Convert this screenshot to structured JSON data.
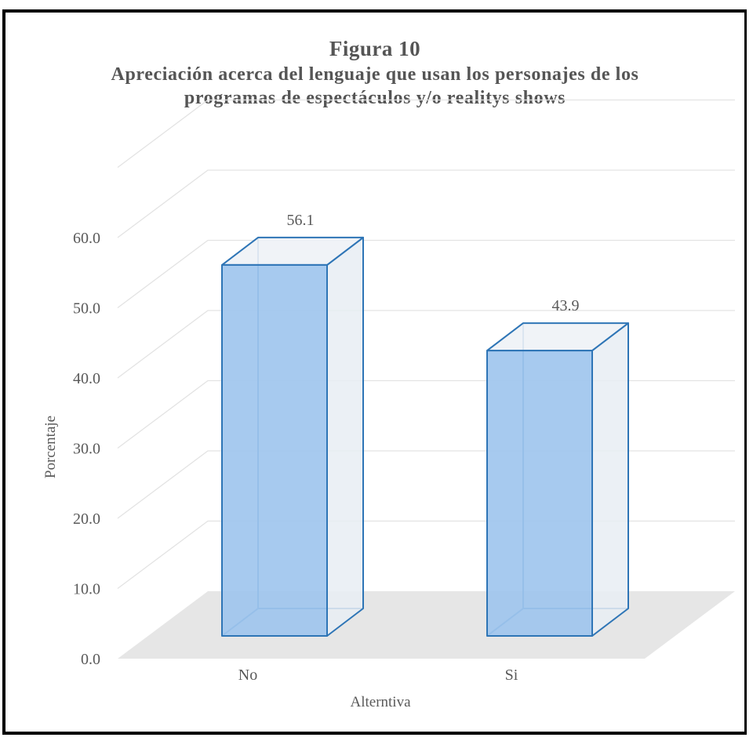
{
  "chart_data": {
    "type": "bar",
    "title": "Figura 10",
    "subtitle": "Apreciación acerca del lenguaje que usan los personajes de los programas de espectáculos y/o realitys shows",
    "categories": [
      "No",
      "Si"
    ],
    "values": [
      56.1,
      43.9
    ],
    "data_labels": [
      "56.1",
      "43.9"
    ],
    "xlabel": "Alterntiva",
    "ylabel": "Porcentaje",
    "ylim": [
      0,
      60
    ],
    "yticks": [
      "0.0",
      "10.0",
      "20.0",
      "30.0",
      "40.0",
      "50.0",
      "60.0"
    ],
    "grid": true,
    "style": "3d-column",
    "colors": {
      "bar_fill": "#9fc5ee",
      "bar_edge": "#2e75b6",
      "side_fill": "#e8edf3",
      "floor": "#e6e6e6",
      "grid": "#e3e3e3"
    }
  }
}
